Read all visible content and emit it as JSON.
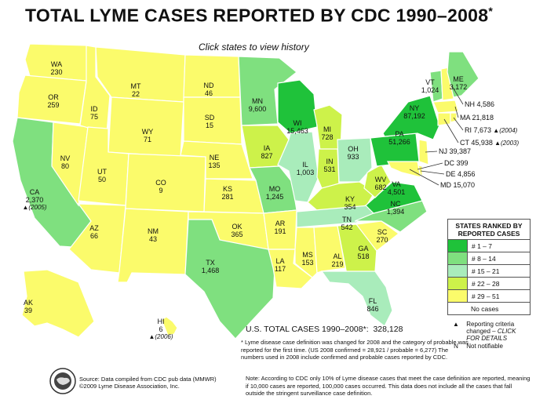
{
  "title": "TOTAL LYME CASES REPORTED BY CDC 1990–2008",
  "title_mark": "*",
  "subtitle": "Click states to view history",
  "colors": {
    "rank_1_7": "#1fc23a",
    "rank_8_14": "#7fe07f",
    "rank_15_21": "#a9ecbb",
    "rank_22_28": "#cdf24a",
    "rank_29_51": "#fbfb6b",
    "no_cases": "#ffffff"
  },
  "states": [
    {
      "id": "WA",
      "value": "230"
    },
    {
      "id": "OR",
      "value": "259"
    },
    {
      "id": "CA",
      "value": "2,370"
    },
    {
      "id": "NV",
      "value": "80"
    },
    {
      "id": "ID",
      "value": "75"
    },
    {
      "id": "MT",
      "value": "22"
    },
    {
      "id": "WY",
      "value": "71"
    },
    {
      "id": "UT",
      "value": "50"
    },
    {
      "id": "AZ",
      "value": "66"
    },
    {
      "id": "CO",
      "value": "9"
    },
    {
      "id": "NM",
      "value": "43"
    },
    {
      "id": "ND",
      "value": "46"
    },
    {
      "id": "SD",
      "value": "15"
    },
    {
      "id": "NE",
      "value": "135"
    },
    {
      "id": "KS",
      "value": "281"
    },
    {
      "id": "OK",
      "value": "365"
    },
    {
      "id": "TX",
      "value": "1,468"
    },
    {
      "id": "MN",
      "value": "9,600"
    },
    {
      "id": "IA",
      "value": "827"
    },
    {
      "id": "MO",
      "value": "1,245"
    },
    {
      "id": "AR",
      "value": "191"
    },
    {
      "id": "LA",
      "value": "117"
    },
    {
      "id": "WI",
      "value": "15,463"
    },
    {
      "id": "IL",
      "value": "1,003"
    },
    {
      "id": "MI",
      "value": "728"
    },
    {
      "id": "IN",
      "value": "531"
    },
    {
      "id": "OH",
      "value": "933"
    },
    {
      "id": "KY",
      "value": "354"
    },
    {
      "id": "TN",
      "value": "542"
    },
    {
      "id": "MS",
      "value": "153"
    },
    {
      "id": "AL",
      "value": "219"
    },
    {
      "id": "GA",
      "value": "518"
    },
    {
      "id": "FL",
      "value": "846"
    },
    {
      "id": "SC",
      "value": "270"
    },
    {
      "id": "NC",
      "value": "1,394"
    },
    {
      "id": "VA",
      "value": "4,501"
    },
    {
      "id": "WV",
      "value": "682"
    },
    {
      "id": "PA",
      "value": "51,266"
    },
    {
      "id": "NY",
      "value": "87,192"
    },
    {
      "id": "VT",
      "value": "1,024"
    },
    {
      "id": "ME",
      "value": "3,172"
    },
    {
      "id": "AK",
      "value": "39"
    },
    {
      "id": "HI",
      "value": "6"
    }
  ],
  "small_states": [
    {
      "id": "NH",
      "value": "4,586",
      "note": ""
    },
    {
      "id": "MA",
      "value": "21,818",
      "note": ""
    },
    {
      "id": "RI",
      "value": "7,673",
      "note": "▲(2004)"
    },
    {
      "id": "CT",
      "value": "45,938",
      "note": "▲(2003)"
    },
    {
      "id": "NJ",
      "value": "39,387",
      "note": ""
    },
    {
      "id": "DC",
      "value": "399",
      "note": ""
    },
    {
      "id": "DE",
      "value": "4,856",
      "note": ""
    },
    {
      "id": "MD",
      "value": "15,070",
      "note": ""
    }
  ],
  "state_notes": {
    "CA": "▲(2005)",
    "HI": "▲(2006)"
  },
  "legend": {
    "title": "STATES RANKED BY REPORTED CASES",
    "items": [
      {
        "label": "# 1 – 7"
      },
      {
        "label": "# 8 – 14"
      },
      {
        "label": "# 15 – 21"
      },
      {
        "label": "# 22 – 28"
      },
      {
        "label": "# 29 – 51"
      }
    ],
    "no_cases": "No cases",
    "reporting_symbol": "▲",
    "reporting_text": "Reporting criteria changed –",
    "reporting_link": "CLICK FOR DETAILS",
    "not_notifiable_symbol": "N",
    "not_notifiable_text": "Not notifiable"
  },
  "total": {
    "label": "U.S. TOTAL CASES 1990–2008*:",
    "value": "328,128"
  },
  "footnote": "Lyme disease case definition was changed for 2008 and the category of probable was reported for the first time. (US 2008 confirmed = 28,921 / probable = 6,277) The numbers used in 2008 include confirmed and probable cases reported by CDC.",
  "note": "Note: According to CDC only 10% of Lyme disease cases that meet the case definition are reported, meaning if 10,000 cases are reported, 100,000 cases occurred. This data does not include all the cases that fall outside the stringent surveillance case definition.",
  "source_line1": "Source: Data compiled from CDC pub data (MMWR)",
  "source_line2": "©2009 Lyme Disease Association, Inc."
}
